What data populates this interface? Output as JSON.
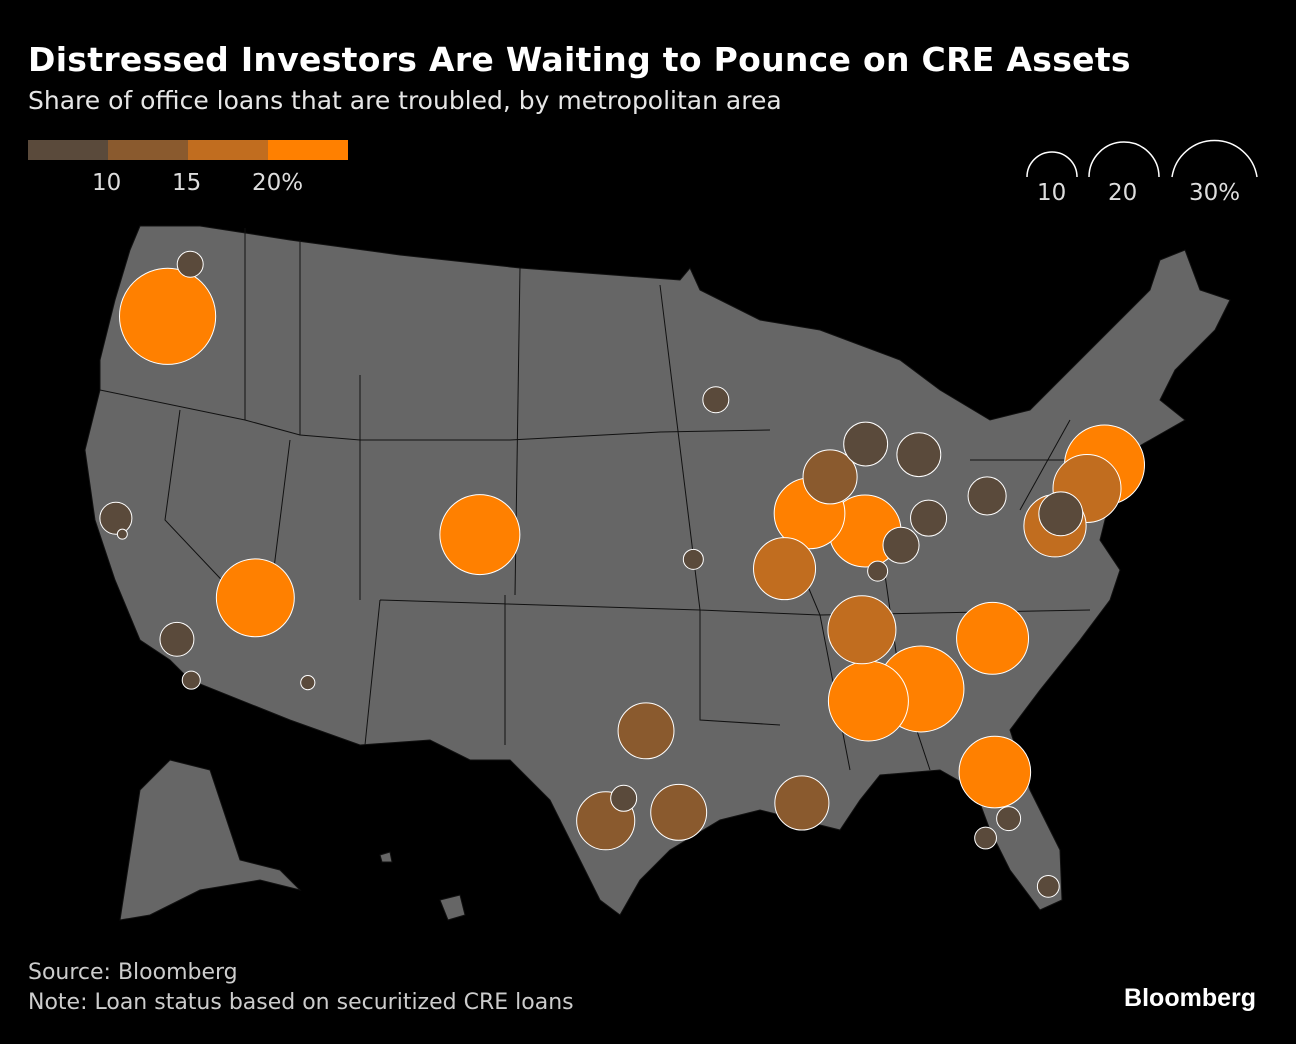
{
  "title": "Distressed Investors Are Waiting to Pounce on CRE Assets",
  "subtitle": "Share of office loans that are troubled, by metropolitan area",
  "source": "Source: Bloomberg",
  "note": "Note: Loan status based on securitized CRE loans",
  "logo": "Bloomberg",
  "chart_data": {
    "type": "scatter",
    "subtype": "bubble-map",
    "title": "Distressed Investors Are Waiting to Pounce on CRE Assets",
    "subtitle": "Share of office loans that are troubled, by metropolitan area",
    "color_legend": {
      "bins": [
        0,
        10,
        15,
        20
      ],
      "colors": [
        "#5a4a3b",
        "#8a5a2e",
        "#c16d1f",
        "#ff8000"
      ],
      "tick_labels": [
        "10",
        "15",
        "20%"
      ]
    },
    "size_legend": {
      "values": [
        10,
        20,
        30
      ],
      "labels": [
        "10",
        "20",
        "30%"
      ]
    },
    "points": [
      {
        "lat": 47.6,
        "lon": -122.3,
        "value": 2.7
      },
      {
        "lat": 45.5,
        "lon": -122.7,
        "value": 37
      },
      {
        "lat": 37.8,
        "lon": -122.4,
        "value": 4.1
      },
      {
        "lat": 37.3,
        "lon": -121.9,
        "value": 0.4
      },
      {
        "lat": 34.05,
        "lon": -118.24,
        "value": 4.6
      },
      {
        "lat": 32.7,
        "lon": -117.2,
        "value": 1.3
      },
      {
        "lat": 36.17,
        "lon": -115.14,
        "value": 24.3
      },
      {
        "lat": 33.45,
        "lon": -112.07,
        "value": 0.8
      },
      {
        "lat": 39.7,
        "lon": -105.0,
        "value": 25.6
      },
      {
        "lat": 44.98,
        "lon": -93.27,
        "value": 2.7
      },
      {
        "lat": 39.1,
        "lon": -94.58,
        "value": 1.6
      },
      {
        "lat": 41.88,
        "lon": -87.63,
        "value": 11.7
      },
      {
        "lat": 40.6,
        "lon": -88.8,
        "value": 20
      },
      {
        "lat": 39.77,
        "lon": -86.16,
        "value": 20.7
      },
      {
        "lat": 38.63,
        "lon": -90.2,
        "value": 15.4
      },
      {
        "lat": 42.96,
        "lon": -85.67,
        "value": 7.7
      },
      {
        "lat": 42.33,
        "lon": -83.05,
        "value": 7.7
      },
      {
        "lat": 39.96,
        "lon": -83.0,
        "value": 5.2
      },
      {
        "lat": 39.1,
        "lon": -84.5,
        "value": 5.2
      },
      {
        "lat": 38.25,
        "lon": -85.76,
        "value": 1.6
      },
      {
        "lat": 40.44,
        "lon": -79.99,
        "value": 5.8
      },
      {
        "lat": 38.9,
        "lon": -77.0,
        "value": 15.5
      },
      {
        "lat": 39.29,
        "lon": -76.61,
        "value": 7.7
      },
      {
        "lat": 40.0,
        "lon": -75.1,
        "value": 18.5
      },
      {
        "lat": 40.7,
        "lon": -74.0,
        "value": 25.6
      },
      {
        "lat": 36.16,
        "lon": -86.78,
        "value": 18.5
      },
      {
        "lat": 35.23,
        "lon": -80.84,
        "value": 20.7
      },
      {
        "lat": 33.75,
        "lon": -84.39,
        "value": 29.6
      },
      {
        "lat": 33.52,
        "lon": -86.8,
        "value": 25.6
      },
      {
        "lat": 30.33,
        "lon": -81.66,
        "value": 20.5
      },
      {
        "lat": 27.95,
        "lon": -82.46,
        "value": 1.9
      },
      {
        "lat": 28.54,
        "lon": -81.38,
        "value": 2.3
      },
      {
        "lat": 25.8,
        "lon": -80.2,
        "value": 1.9
      },
      {
        "lat": 29.95,
        "lon": -90.07,
        "value": 11.7
      },
      {
        "lat": 29.76,
        "lon": -95.37,
        "value": 12.5
      },
      {
        "lat": 29.42,
        "lon": -98.49,
        "value": 13.5
      },
      {
        "lat": 30.27,
        "lon": -97.74,
        "value": 2.7
      },
      {
        "lat": 32.78,
        "lon": -96.8,
        "value": 12.5
      }
    ]
  }
}
